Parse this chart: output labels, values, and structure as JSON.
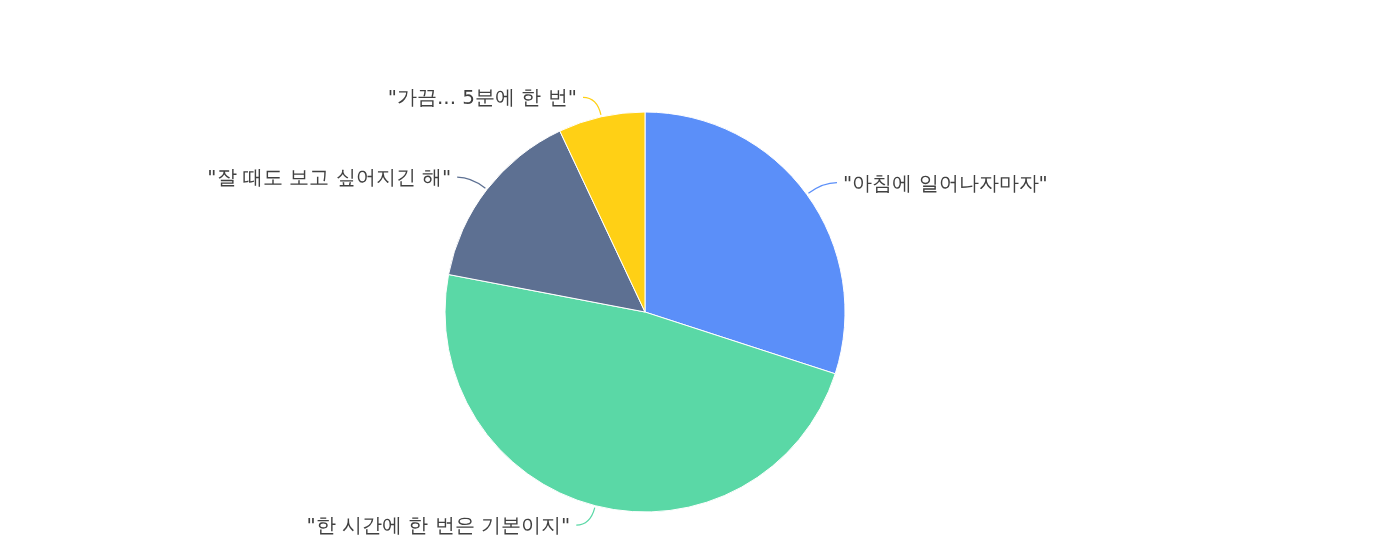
{
  "chart_data": {
    "type": "pie",
    "categories": [
      "\"아침에 일어나자마자\"",
      "\"한 시간에 한 번은 기본이지\"",
      "\"잘 때도 보고 싶어지긴 해\"",
      "\"가끔... 5분에 한 번\""
    ],
    "values": [
      30,
      48,
      15,
      7
    ],
    "colors": [
      "#5b8ff9",
      "#5ad8a6",
      "#5d7092",
      "#ffd015"
    ]
  }
}
